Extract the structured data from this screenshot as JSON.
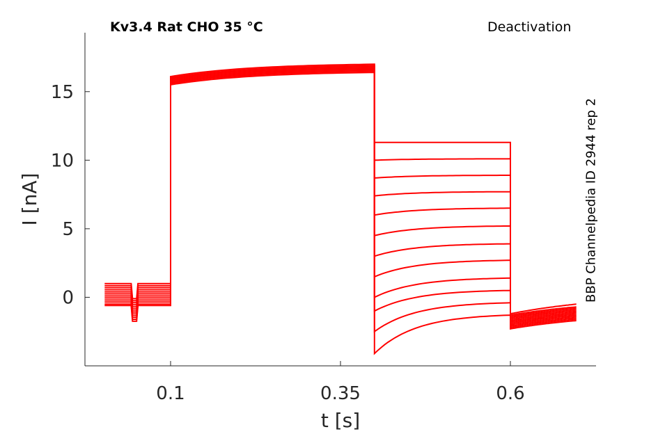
{
  "chart_data": {
    "type": "line",
    "title": "Kv3.4  Rat  CHO  35 °C",
    "protocol": "Deactivation",
    "source": "BBP Channelpedia ID 2944 rep 2",
    "xlabel": "t [s]",
    "ylabel": "I [nA]",
    "xlim": [
      -0.026,
      0.726
    ],
    "ylim": [
      -5,
      19.3
    ],
    "xticks": [
      {
        "v": 0.1,
        "label": "0.1"
      },
      {
        "v": 0.35,
        "label": "0.35"
      },
      {
        "v": 0.6,
        "label": "0.6"
      }
    ],
    "yticks": [
      {
        "v": 0,
        "label": "0"
      },
      {
        "v": 5,
        "label": "5"
      },
      {
        "v": 10,
        "label": "10"
      },
      {
        "v": 15,
        "label": "15"
      }
    ],
    "color": "#ff0000",
    "times": {
      "start": 0.003,
      "dip_on": 0.042,
      "dip_off": 0.052,
      "step": 0.1,
      "tail": 0.4,
      "final": 0.6,
      "end": 0.697
    },
    "series": [
      {
        "hold": 1.0,
        "dip": -0.1,
        "act": [
          16.1,
          17.0
        ],
        "tail": [
          11.3,
          11.3
        ],
        "fin": [
          -1.2,
          -0.5
        ]
      },
      {
        "hold": 0.85,
        "dip": -0.25,
        "act": [
          16.0,
          16.9
        ],
        "tail": [
          10.0,
          10.1
        ],
        "fin": [
          -1.3,
          -0.7
        ]
      },
      {
        "hold": 0.7,
        "dip": -0.4,
        "act": [
          16.0,
          16.9
        ],
        "tail": [
          8.7,
          8.9
        ],
        "fin": [
          -1.4,
          -0.8
        ]
      },
      {
        "hold": 0.55,
        "dip": -0.55,
        "act": [
          15.9,
          16.8
        ],
        "tail": [
          7.4,
          7.7
        ],
        "fin": [
          -1.5,
          -0.9
        ]
      },
      {
        "hold": 0.4,
        "dip": -0.7,
        "act": [
          15.9,
          16.8
        ],
        "tail": [
          6.0,
          6.5
        ],
        "fin": [
          -1.6,
          -1.0
        ]
      },
      {
        "hold": 0.25,
        "dip": -0.85,
        "act": [
          15.8,
          16.7
        ],
        "tail": [
          4.5,
          5.2
        ],
        "fin": [
          -1.7,
          -1.1
        ]
      },
      {
        "hold": 0.1,
        "dip": -1.0,
        "act": [
          15.8,
          16.7
        ],
        "tail": [
          3.0,
          3.9
        ],
        "fin": [
          -1.8,
          -1.2
        ]
      },
      {
        "hold": -0.05,
        "dip": -1.15,
        "act": [
          15.7,
          16.6
        ],
        "tail": [
          1.5,
          2.7
        ],
        "fin": [
          -1.9,
          -1.3
        ]
      },
      {
        "hold": -0.2,
        "dip": -1.3,
        "act": [
          15.7,
          16.6
        ],
        "tail": [
          0.0,
          1.4
        ],
        "fin": [
          -2.0,
          -1.4
        ]
      },
      {
        "hold": -0.35,
        "dip": -1.45,
        "act": [
          15.6,
          16.5
        ],
        "tail": [
          -1.0,
          0.5
        ],
        "fin": [
          -2.1,
          -1.5
        ]
      },
      {
        "hold": -0.5,
        "dip": -1.6,
        "act": [
          15.6,
          16.5
        ],
        "tail": [
          -2.5,
          -0.4
        ],
        "fin": [
          -2.2,
          -1.6
        ]
      },
      {
        "hold": -0.6,
        "dip": -1.75,
        "act": [
          15.5,
          16.4
        ],
        "tail": [
          -4.1,
          -1.3
        ],
        "fin": [
          -2.3,
          -1.7
        ]
      }
    ]
  }
}
